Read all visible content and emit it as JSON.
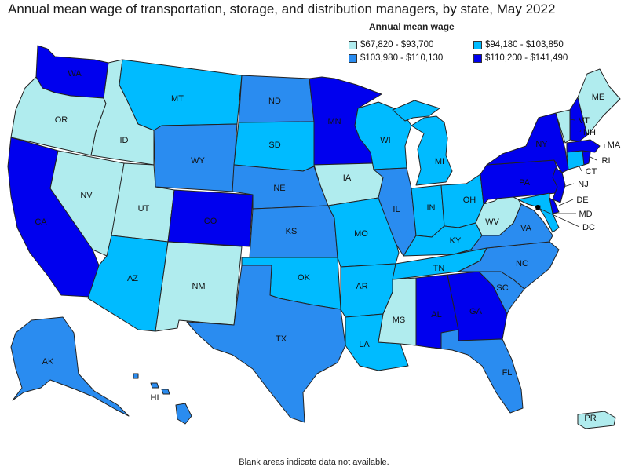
{
  "title": "Annual mean wage of transportation, storage, and distribution managers, by state, May 2022",
  "legend": {
    "title": "Annual mean wage",
    "bins": [
      {
        "label": "$67,820 - $93,700",
        "color": "#b0ecee"
      },
      {
        "label": "$94,180 - $103,850",
        "color": "#00bbff"
      },
      {
        "label": "$103,980 - $110,130",
        "color": "#2a8cf0"
      },
      {
        "label": "$110,200 - $141,490",
        "color": "#0000ee"
      }
    ]
  },
  "footer": "Blank areas indicate data not available.",
  "states": [
    {
      "abbr": "WA",
      "bin": 3
    },
    {
      "abbr": "OR",
      "bin": 0
    },
    {
      "abbr": "CA",
      "bin": 3
    },
    {
      "abbr": "ID",
      "bin": 0
    },
    {
      "abbr": "NV",
      "bin": 0
    },
    {
      "abbr": "UT",
      "bin": 0
    },
    {
      "abbr": "AZ",
      "bin": 1
    },
    {
      "abbr": "MT",
      "bin": 1
    },
    {
      "abbr": "WY",
      "bin": 2
    },
    {
      "abbr": "CO",
      "bin": 3
    },
    {
      "abbr": "NM",
      "bin": 0
    },
    {
      "abbr": "ND",
      "bin": 2
    },
    {
      "abbr": "SD",
      "bin": 1
    },
    {
      "abbr": "NE",
      "bin": 2
    },
    {
      "abbr": "KS",
      "bin": 2
    },
    {
      "abbr": "OK",
      "bin": 1
    },
    {
      "abbr": "TX",
      "bin": 2
    },
    {
      "abbr": "MN",
      "bin": 3
    },
    {
      "abbr": "IA",
      "bin": 0
    },
    {
      "abbr": "MO",
      "bin": 1
    },
    {
      "abbr": "AR",
      "bin": 1
    },
    {
      "abbr": "LA",
      "bin": 1
    },
    {
      "abbr": "WI",
      "bin": 1
    },
    {
      "abbr": "IL",
      "bin": 2
    },
    {
      "abbr": "MI",
      "bin": 1
    },
    {
      "abbr": "IN",
      "bin": 1
    },
    {
      "abbr": "OH",
      "bin": 1
    },
    {
      "abbr": "KY",
      "bin": 1
    },
    {
      "abbr": "TN",
      "bin": 1
    },
    {
      "abbr": "MS",
      "bin": 0
    },
    {
      "abbr": "AL",
      "bin": 3
    },
    {
      "abbr": "GA",
      "bin": 3
    },
    {
      "abbr": "FL",
      "bin": 2
    },
    {
      "abbr": "SC",
      "bin": 2
    },
    {
      "abbr": "NC",
      "bin": 2
    },
    {
      "abbr": "VA",
      "bin": 2
    },
    {
      "abbr": "WV",
      "bin": 0
    },
    {
      "abbr": "PA",
      "bin": 3
    },
    {
      "abbr": "NY",
      "bin": 3
    },
    {
      "abbr": "VT",
      "bin": 0
    },
    {
      "abbr": "NH",
      "bin": 3
    },
    {
      "abbr": "ME",
      "bin": 0
    },
    {
      "abbr": "MA",
      "bin": 3
    },
    {
      "abbr": "RI",
      "bin": 3
    },
    {
      "abbr": "CT",
      "bin": 1
    },
    {
      "abbr": "NJ",
      "bin": 3
    },
    {
      "abbr": "DE",
      "bin": 3
    },
    {
      "abbr": "MD",
      "bin": 1
    },
    {
      "abbr": "DC",
      "bin": 3
    },
    {
      "abbr": "AK",
      "bin": 2
    },
    {
      "abbr": "HI",
      "bin": 2
    },
    {
      "abbr": "PR",
      "bin": 0
    }
  ]
}
